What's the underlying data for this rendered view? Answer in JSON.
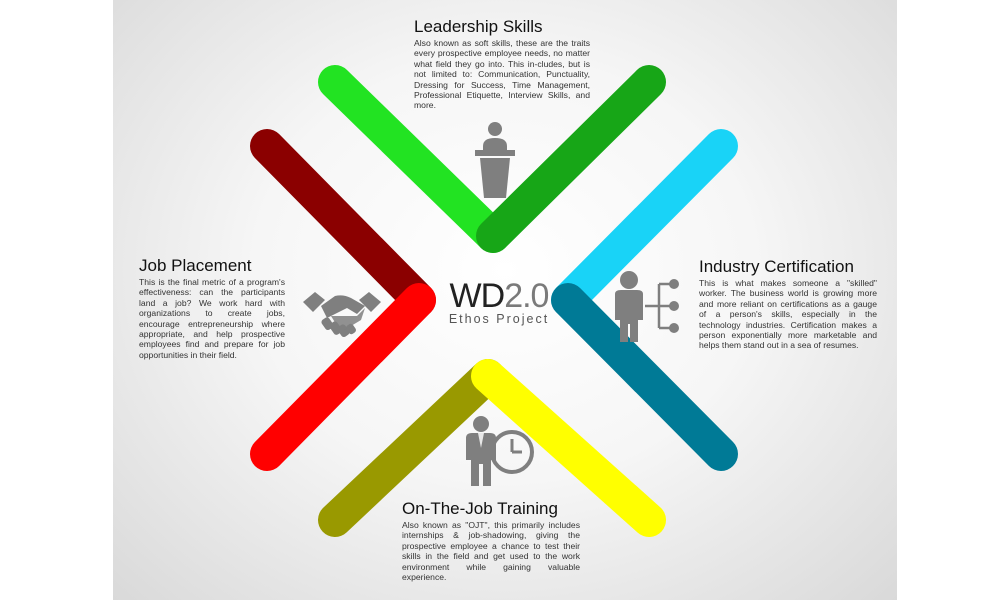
{
  "colors": {
    "green_left": "#22e322",
    "green_right": "#17a617",
    "darkred": "#8b0000",
    "red": "#ff0000",
    "cyan": "#19d3f7",
    "teal": "#007a96",
    "olive": "#999900",
    "yellow": "#ffff00",
    "icon_gray": "#7f7f7f"
  },
  "logo": {
    "main": "WD",
    "version": "2.0",
    "subtitle": "Ethos Project"
  },
  "sections": {
    "leadership": {
      "title": "Leadership Skills",
      "body": "Also known as soft skills, these are the traits every prospective employee needs, no matter what field they go into. This in-cludes, but is not limited to: Communication, Punctuality, Dressing for Success, Time Management, Professional Etiquette, Interview Skills, and more.",
      "icon": "podium-speaker-icon"
    },
    "placement": {
      "title": "Job Placement",
      "body": "This is the final metric of a program's effectiveness: can the participants land a job? We work hard with organizations to create jobs, encourage entrepreneurship where appropriate, and help prospective employees find and prepare for job opportunities in their field.",
      "icon": "handshake-icon"
    },
    "certification": {
      "title": "Industry Certification",
      "body": "This is what makes someone a \"skilled\" worker. The business world is growing more and more reliant on certifications as a gauge of a person's skills, especially in the technology industries. Certification makes a person exponentially more marketable and helps them stand out in a sea of resumes.",
      "icon": "person-network-icon"
    },
    "training": {
      "title": "On-The-Job Training",
      "body": "Also known as \"OJT\", this primarily includes internships & job-shadowing, giving the prospective employee a chance to test their skills in the field and get used to the work environment while gaining valuable experience.",
      "icon": "businessman-clock-icon"
    }
  }
}
